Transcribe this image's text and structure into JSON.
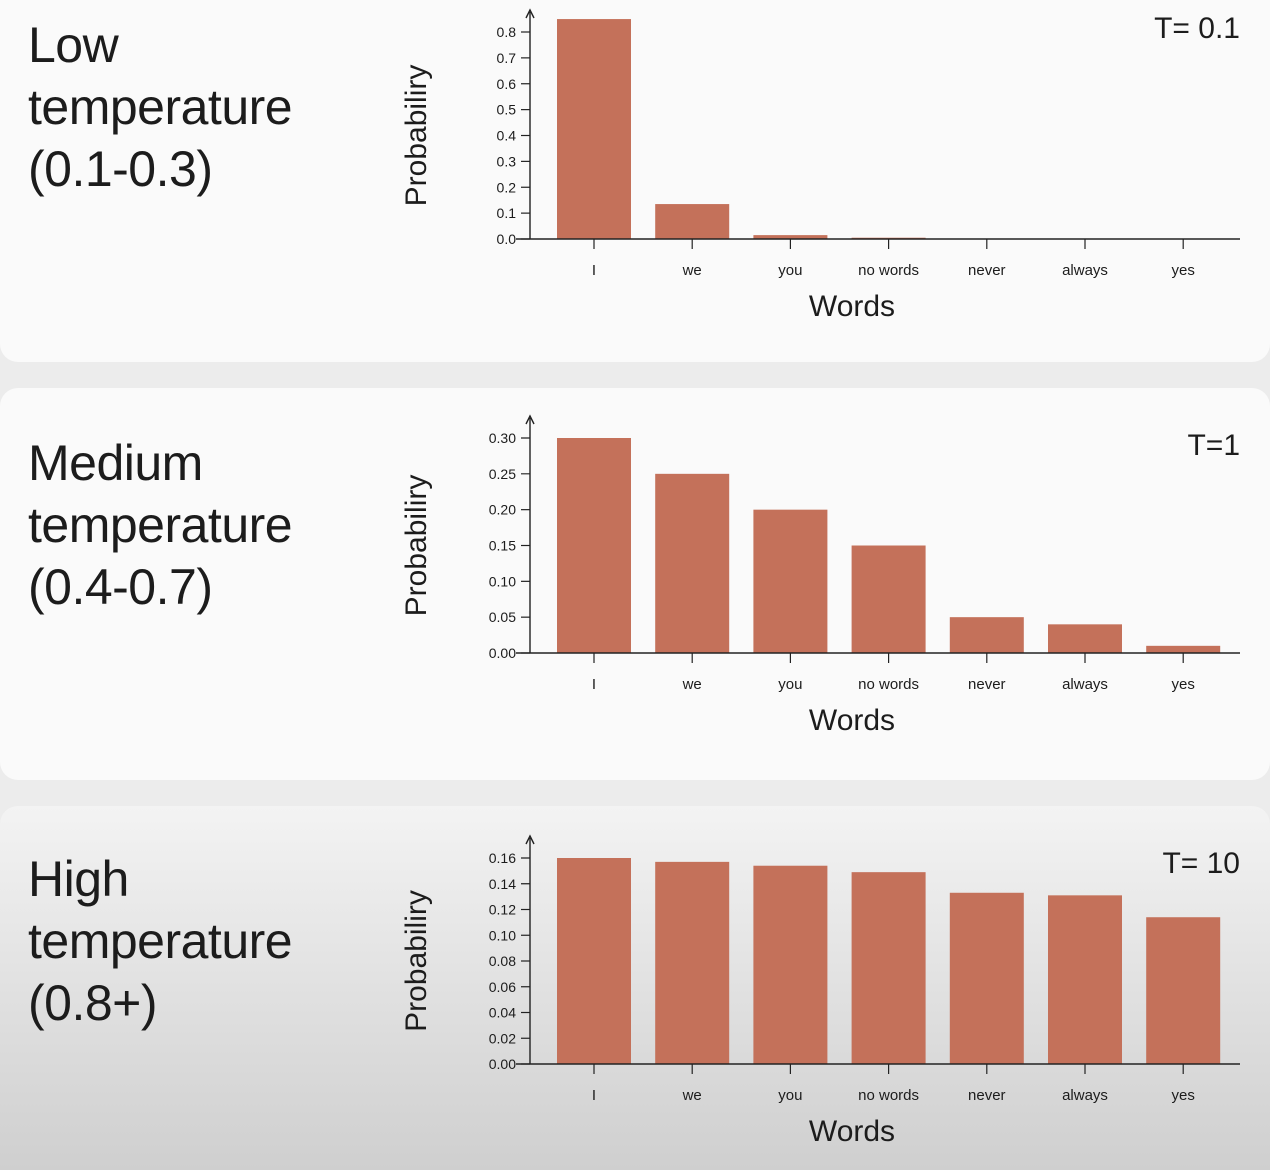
{
  "panels": [
    {
      "label_lines": [
        "Low",
        "temperature",
        "(0.1-0.3)"
      ]
    },
    {
      "label_lines": [
        "Medium",
        "temperature",
        "(0.4-0.7)"
      ]
    },
    {
      "label_lines": [
        "High",
        "temperature",
        "(0.8+)"
      ]
    }
  ],
  "colors": {
    "bar": "#c4715a",
    "axis": "#222222"
  },
  "chart_data": [
    {
      "type": "bar",
      "annotation": "T= 0.1",
      "xlabel": "Words",
      "ylabel": "Probabiliry",
      "categories": [
        "I",
        "we",
        "you",
        "no words",
        "never",
        "always",
        "yes"
      ],
      "values": [
        0.85,
        0.135,
        0.015,
        0.005,
        0.0,
        0.0,
        0.0
      ],
      "yticks": [
        "0.0",
        "0.1",
        "0.2",
        "0.3",
        "0.4",
        "0.5",
        "0.6",
        "0.7",
        "0.8"
      ],
      "ylim": [
        0,
        0.8
      ]
    },
    {
      "type": "bar",
      "annotation": "T=1",
      "xlabel": "Words",
      "ylabel": "Probabiliry",
      "categories": [
        "I",
        "we",
        "you",
        "no words",
        "never",
        "always",
        "yes"
      ],
      "values": [
        0.3,
        0.25,
        0.2,
        0.15,
        0.05,
        0.04,
        0.01
      ],
      "yticks": [
        "0.00",
        "0.05",
        "0.10",
        "0.15",
        "0.20",
        "0.25",
        "0.30"
      ],
      "ylim": [
        0,
        0.3
      ]
    },
    {
      "type": "bar",
      "annotation": "T= 10",
      "xlabel": "Words",
      "ylabel": "Probabiliry",
      "categories": [
        "I",
        "we",
        "you",
        "no words",
        "never",
        "always",
        "yes"
      ],
      "values": [
        0.16,
        0.157,
        0.154,
        0.149,
        0.133,
        0.131,
        0.114
      ],
      "yticks": [
        "0.00",
        "0.02",
        "0.04",
        "0.06",
        "0.08",
        "0.10",
        "0.12",
        "0.14",
        "0.16"
      ],
      "ylim": [
        0,
        0.16
      ]
    }
  ]
}
